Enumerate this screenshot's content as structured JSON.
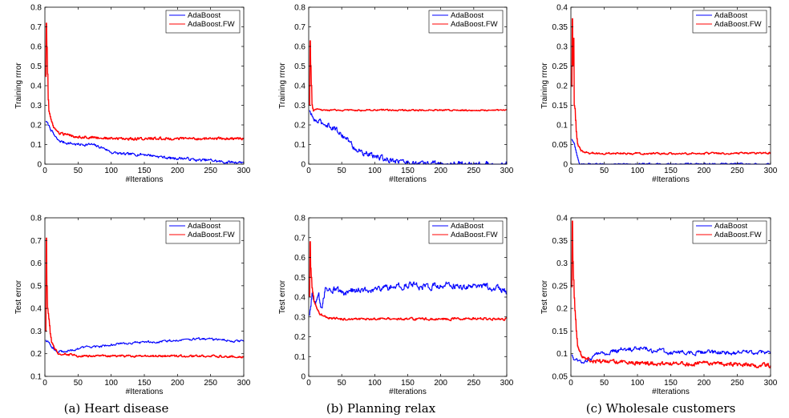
{
  "chart_data": [
    {
      "type": "line",
      "panel": "(a) top",
      "xlabel": "#Iterations",
      "ylabel": "Training rrror",
      "xlim": [
        0,
        300
      ],
      "ylim": [
        0,
        0.8
      ],
      "xticks": [
        "0",
        "50",
        "100",
        "150",
        "200",
        "250",
        "300"
      ],
      "yticks": [
        "0",
        "0.1",
        "0.2",
        "0.3",
        "0.4",
        "0.5",
        "0.6",
        "0.7",
        "0.8"
      ],
      "legend": "top-right",
      "grid": false,
      "series": [
        {
          "name": "AdaBoost",
          "color": "#0000ff",
          "noise": 0.006,
          "points": [
            [
              1,
              0.22
            ],
            [
              3,
              0.21
            ],
            [
              5,
              0.2
            ],
            [
              10,
              0.17
            ],
            [
              15,
              0.14
            ],
            [
              20,
              0.12
            ],
            [
              30,
              0.11
            ],
            [
              50,
              0.1
            ],
            [
              70,
              0.1
            ],
            [
              90,
              0.08
            ],
            [
              100,
              0.06
            ],
            [
              120,
              0.05
            ],
            [
              150,
              0.05
            ],
            [
              170,
              0.04
            ],
            [
              190,
              0.03
            ],
            [
              210,
              0.03
            ],
            [
              230,
              0.02
            ],
            [
              250,
              0.02
            ],
            [
              270,
              0.01
            ],
            [
              290,
              0.01
            ],
            [
              300,
              0.01
            ]
          ]
        },
        {
          "name": "AdaBoost.FW",
          "color": "#ff0000",
          "noise": 0.006,
          "points": [
            [
              1,
              0.45
            ],
            [
              2,
              0.72
            ],
            [
              3,
              0.6
            ],
            [
              4,
              0.46
            ],
            [
              5,
              0.33
            ],
            [
              6,
              0.27
            ],
            [
              8,
              0.24
            ],
            [
              10,
              0.21
            ],
            [
              15,
              0.18
            ],
            [
              20,
              0.16
            ],
            [
              30,
              0.15
            ],
            [
              50,
              0.14
            ],
            [
              80,
              0.135
            ],
            [
              100,
              0.13
            ],
            [
              150,
              0.13
            ],
            [
              200,
              0.13
            ],
            [
              250,
              0.13
            ],
            [
              300,
              0.13
            ]
          ]
        }
      ]
    },
    {
      "type": "line",
      "panel": "(b) top",
      "xlabel": "#Iterations",
      "ylabel": "Training rrror",
      "xlim": [
        0,
        300
      ],
      "ylim": [
        0,
        0.8
      ],
      "xticks": [
        "0",
        "50",
        "100",
        "150",
        "200",
        "250",
        "300"
      ],
      "yticks": [
        "0",
        "0.1",
        "0.2",
        "0.3",
        "0.4",
        "0.5",
        "0.6",
        "0.7",
        "0.8"
      ],
      "legend": "top-right",
      "grid": false,
      "series": [
        {
          "name": "AdaBoost",
          "color": "#0000ff",
          "noise": 0.012,
          "points": [
            [
              1,
              0.27
            ],
            [
              5,
              0.24
            ],
            [
              10,
              0.22
            ],
            [
              20,
              0.21
            ],
            [
              30,
              0.2
            ],
            [
              40,
              0.18
            ],
            [
              50,
              0.15
            ],
            [
              60,
              0.12
            ],
            [
              70,
              0.08
            ],
            [
              80,
              0.06
            ],
            [
              90,
              0.05
            ],
            [
              100,
              0.04
            ],
            [
              110,
              0.03
            ],
            [
              130,
              0.02
            ],
            [
              150,
              0.01
            ],
            [
              170,
              0.0
            ],
            [
              190,
              0.005
            ],
            [
              205,
              0.0
            ],
            [
              300,
              0.0
            ]
          ]
        },
        {
          "name": "AdaBoost.FW",
          "color": "#ff0000",
          "noise": 0.003,
          "points": [
            [
              1,
              0.3
            ],
            [
              2,
              0.63
            ],
            [
              3,
              0.5
            ],
            [
              4,
              0.4
            ],
            [
              5,
              0.3
            ],
            [
              7,
              0.27
            ],
            [
              10,
              0.28
            ],
            [
              20,
              0.275
            ],
            [
              50,
              0.275
            ],
            [
              100,
              0.275
            ],
            [
              200,
              0.275
            ],
            [
              300,
              0.275
            ]
          ]
        }
      ]
    },
    {
      "type": "line",
      "panel": "(c) top",
      "xlabel": "#Iterations",
      "ylabel": "Training rrror",
      "xlim": [
        0,
        300
      ],
      "ylim": [
        0,
        0.4
      ],
      "xticks": [
        "0",
        "50",
        "100",
        "150",
        "200",
        "250",
        "300"
      ],
      "yticks": [
        "0",
        "0.05",
        "0.1",
        "0.15",
        "0.2",
        "0.25",
        "0.3",
        "0.35",
        "0.4"
      ],
      "legend": "top-right",
      "grid": false,
      "series": [
        {
          "name": "AdaBoost",
          "color": "#0000ff",
          "noise": 0.002,
          "points": [
            [
              1,
              0.065
            ],
            [
              3,
              0.06
            ],
            [
              5,
              0.05
            ],
            [
              8,
              0.03
            ],
            [
              10,
              0.015
            ],
            [
              13,
              0.0
            ],
            [
              300,
              0.0
            ]
          ]
        },
        {
          "name": "AdaBoost.FW",
          "color": "#ff0000",
          "noise": 0.002,
          "points": [
            [
              1,
              0.2
            ],
            [
              2,
              0.37
            ],
            [
              3,
              0.25
            ],
            [
              4,
              0.32
            ],
            [
              5,
              0.15
            ],
            [
              6,
              0.14
            ],
            [
              8,
              0.08
            ],
            [
              10,
              0.05
            ],
            [
              15,
              0.035
            ],
            [
              20,
              0.03
            ],
            [
              30,
              0.028
            ],
            [
              50,
              0.027
            ],
            [
              100,
              0.027
            ],
            [
              200,
              0.027
            ],
            [
              300,
              0.028
            ]
          ]
        }
      ]
    },
    {
      "type": "line",
      "panel": "(a) bottom",
      "xlabel": "#Iterations",
      "ylabel": "Test error",
      "xlim": [
        0,
        300
      ],
      "ylim": [
        0.1,
        0.8
      ],
      "xticks": [
        "0",
        "50",
        "100",
        "150",
        "200",
        "250",
        "300"
      ],
      "yticks": [
        "0.1",
        "0.2",
        "0.3",
        "0.4",
        "0.5",
        "0.6",
        "0.7",
        "0.8"
      ],
      "legend": "top-right",
      "grid": false,
      "series": [
        {
          "name": "AdaBoost",
          "color": "#0000ff",
          "noise": 0.004,
          "points": [
            [
              1,
              0.26
            ],
            [
              5,
              0.25
            ],
            [
              10,
              0.23
            ],
            [
              20,
              0.21
            ],
            [
              30,
              0.21
            ],
            [
              50,
              0.22
            ],
            [
              60,
              0.23
            ],
            [
              80,
              0.23
            ],
            [
              100,
              0.24
            ],
            [
              120,
              0.245
            ],
            [
              150,
              0.25
            ],
            [
              180,
              0.255
            ],
            [
              200,
              0.26
            ],
            [
              230,
              0.265
            ],
            [
              250,
              0.265
            ],
            [
              270,
              0.26
            ],
            [
              290,
              0.255
            ],
            [
              300,
              0.255
            ]
          ]
        },
        {
          "name": "AdaBoost.FW",
          "color": "#ff0000",
          "noise": 0.004,
          "points": [
            [
              1,
              0.3
            ],
            [
              2,
              0.71
            ],
            [
              3,
              0.5
            ],
            [
              4,
              0.4
            ],
            [
              6,
              0.35
            ],
            [
              8,
              0.29
            ],
            [
              10,
              0.25
            ],
            [
              15,
              0.22
            ],
            [
              20,
              0.2
            ],
            [
              30,
              0.2
            ],
            [
              50,
              0.19
            ],
            [
              100,
              0.19
            ],
            [
              150,
              0.19
            ],
            [
              200,
              0.19
            ],
            [
              250,
              0.19
            ],
            [
              300,
              0.185
            ]
          ]
        }
      ]
    },
    {
      "type": "line",
      "panel": "(b) bottom",
      "xlabel": "#Iterations",
      "ylabel": "Test error",
      "xlim": [
        0,
        300
      ],
      "ylim": [
        0,
        0.8
      ],
      "xticks": [
        "0",
        "50",
        "100",
        "150",
        "200",
        "250",
        "300"
      ],
      "yticks": [
        "0",
        "0.1",
        "0.2",
        "0.3",
        "0.4",
        "0.5",
        "0.6",
        "0.7",
        "0.8"
      ],
      "legend": "top-right",
      "grid": false,
      "series": [
        {
          "name": "AdaBoost",
          "color": "#0000ff",
          "noise": 0.014,
          "points": [
            [
              1,
              0.3
            ],
            [
              5,
              0.4
            ],
            [
              10,
              0.35
            ],
            [
              15,
              0.4
            ],
            [
              20,
              0.33
            ],
            [
              25,
              0.45
            ],
            [
              30,
              0.43
            ],
            [
              40,
              0.44
            ],
            [
              50,
              0.42
            ],
            [
              75,
              0.44
            ],
            [
              100,
              0.44
            ],
            [
              125,
              0.45
            ],
            [
              150,
              0.46
            ],
            [
              175,
              0.45
            ],
            [
              200,
              0.46
            ],
            [
              225,
              0.46
            ],
            [
              250,
              0.45
            ],
            [
              275,
              0.45
            ],
            [
              290,
              0.44
            ],
            [
              300,
              0.43
            ]
          ]
        },
        {
          "name": "AdaBoost.FW",
          "color": "#ff0000",
          "noise": 0.005,
          "points": [
            [
              1,
              0.4
            ],
            [
              2,
              0.68
            ],
            [
              3,
              0.55
            ],
            [
              5,
              0.45
            ],
            [
              8,
              0.38
            ],
            [
              10,
              0.36
            ],
            [
              15,
              0.32
            ],
            [
              20,
              0.31
            ],
            [
              30,
              0.295
            ],
            [
              50,
              0.29
            ],
            [
              100,
              0.29
            ],
            [
              200,
              0.29
            ],
            [
              300,
              0.29
            ]
          ]
        }
      ]
    },
    {
      "type": "line",
      "panel": "(c) bottom",
      "xlabel": "#Iterations",
      "ylabel": "Test error",
      "xlim": [
        0,
        300
      ],
      "ylim": [
        0.05,
        0.4
      ],
      "xticks": [
        "0",
        "50",
        "100",
        "150",
        "200",
        "250",
        "300"
      ],
      "yticks": [
        "0.05",
        "0.1",
        "0.15",
        "0.2",
        "0.25",
        "0.3",
        "0.35",
        "0.4"
      ],
      "legend": "top-right",
      "grid": false,
      "series": [
        {
          "name": "AdaBoost",
          "color": "#0000ff",
          "noise": 0.004,
          "points": [
            [
              1,
              0.1
            ],
            [
              5,
              0.09
            ],
            [
              10,
              0.085
            ],
            [
              20,
              0.08
            ],
            [
              30,
              0.09
            ],
            [
              40,
              0.1
            ],
            [
              50,
              0.1
            ],
            [
              60,
              0.105
            ],
            [
              80,
              0.11
            ],
            [
              100,
              0.11
            ],
            [
              110,
              0.115
            ],
            [
              120,
              0.105
            ],
            [
              130,
              0.11
            ],
            [
              142,
              0.103
            ],
            [
              300,
              0.103
            ]
          ]
        },
        {
          "name": "AdaBoost.FW",
          "color": "#ff0000",
          "noise": 0.004,
          "points": [
            [
              1,
              0.25
            ],
            [
              2,
              0.39
            ],
            [
              3,
              0.3
            ],
            [
              5,
              0.22
            ],
            [
              8,
              0.15
            ],
            [
              10,
              0.12
            ],
            [
              15,
              0.1
            ],
            [
              20,
              0.09
            ],
            [
              30,
              0.085
            ],
            [
              50,
              0.082
            ],
            [
              100,
              0.08
            ],
            [
              150,
              0.078
            ],
            [
              200,
              0.078
            ],
            [
              250,
              0.076
            ],
            [
              300,
              0.074
            ]
          ]
        }
      ]
    }
  ],
  "captions": [
    "(a)  Heart disease",
    "(b)  Planning relax",
    "(c)  Wholesale customers"
  ]
}
